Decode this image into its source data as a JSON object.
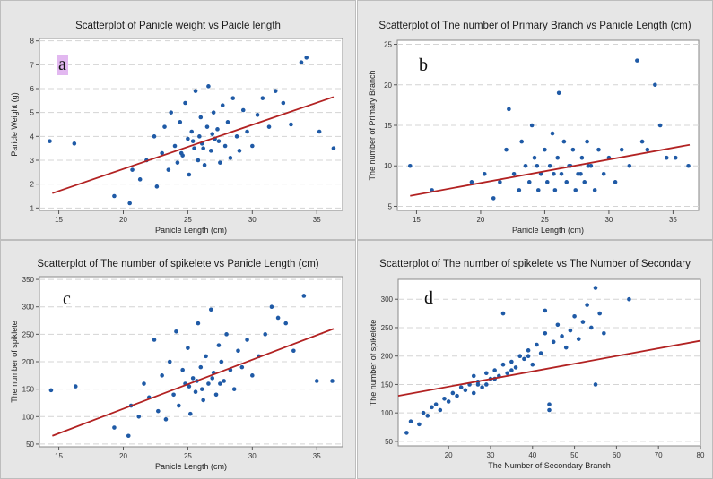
{
  "chart_data": [
    {
      "type": "scatter",
      "panel_label": "a",
      "title": "Scatterplot of Panicle weight vs Paicle length",
      "xlabel": "Panicle Length (cm)",
      "ylabel": "Paricle Weight (g)",
      "xlim": [
        13.5,
        37
      ],
      "ylim": [
        0.9,
        8.1
      ],
      "xticks": [
        15,
        20,
        25,
        30,
        35
      ],
      "yticks": [
        1,
        2,
        3,
        4,
        5,
        6,
        7,
        8
      ],
      "grid": "horizontal-dashed",
      "fit_line": {
        "x": [
          14.5,
          36.3
        ],
        "y": [
          1.62,
          5.65
        ]
      },
      "colors": {
        "points": "#1f5aa6",
        "fit": "#b22222"
      },
      "points": [
        [
          14.3,
          3.8
        ],
        [
          16.2,
          3.7
        ],
        [
          19.3,
          1.5
        ],
        [
          20.5,
          1.2
        ],
        [
          20.7,
          2.6
        ],
        [
          21.3,
          2.2
        ],
        [
          21.8,
          3.0
        ],
        [
          22.4,
          4.0
        ],
        [
          22.6,
          1.9
        ],
        [
          23.0,
          3.3
        ],
        [
          23.2,
          4.4
        ],
        [
          23.5,
          2.6
        ],
        [
          23.7,
          5.0
        ],
        [
          24.0,
          3.6
        ],
        [
          24.2,
          2.9
        ],
        [
          24.4,
          4.6
        ],
        [
          24.6,
          3.2
        ],
        [
          24.8,
          5.4
        ],
        [
          25.0,
          3.9
        ],
        [
          25.1,
          2.4
        ],
        [
          25.3,
          4.2
        ],
        [
          25.5,
          3.5
        ],
        [
          25.6,
          5.9
        ],
        [
          25.8,
          3.0
        ],
        [
          26.0,
          4.8
        ],
        [
          26.1,
          3.7
        ],
        [
          26.3,
          2.8
        ],
        [
          26.5,
          4.4
        ],
        [
          26.6,
          6.1
        ],
        [
          26.8,
          3.4
        ],
        [
          27.0,
          5.0
        ],
        [
          27.1,
          3.9
        ],
        [
          27.3,
          4.3
        ],
        [
          27.5,
          2.9
        ],
        [
          27.7,
          5.3
        ],
        [
          27.9,
          3.6
        ],
        [
          28.1,
          4.6
        ],
        [
          28.3,
          3.1
        ],
        [
          28.5,
          5.6
        ],
        [
          28.8,
          4.0
        ],
        [
          29.0,
          3.4
        ],
        [
          29.3,
          5.1
        ],
        [
          29.6,
          4.2
        ],
        [
          30.0,
          3.6
        ],
        [
          30.4,
          4.9
        ],
        [
          30.8,
          5.6
        ],
        [
          31.3,
          4.4
        ],
        [
          31.8,
          5.9
        ],
        [
          32.4,
          5.4
        ],
        [
          33.0,
          4.5
        ],
        [
          33.8,
          7.1
        ],
        [
          34.2,
          7.3
        ],
        [
          35.2,
          4.2
        ],
        [
          36.3,
          3.5
        ],
        [
          24.5,
          3.3
        ],
        [
          25.4,
          3.8
        ],
        [
          26.2,
          3.5
        ],
        [
          26.9,
          4.1
        ],
        [
          27.4,
          3.8
        ],
        [
          25.9,
          4.0
        ]
      ]
    },
    {
      "type": "scatter",
      "panel_label": "b",
      "title": "Scatterplot of Tne number of Primary Branch vs Panicle Length (cm)",
      "xlabel": "Panicle Length (cm)",
      "ylabel": "Tne number of Primary Branch",
      "xlim": [
        13.5,
        37
      ],
      "ylim": [
        4.5,
        25.5
      ],
      "xticks": [
        15,
        20,
        25,
        30,
        35
      ],
      "yticks": [
        5,
        10,
        15,
        20,
        25
      ],
      "grid": "horizontal-dashed",
      "fit_line": {
        "x": [
          14.5,
          36.3
        ],
        "y": [
          6.3,
          12.6
        ]
      },
      "colors": {
        "points": "#1f5aa6",
        "fit": "#b22222"
      },
      "points": [
        [
          14.5,
          10
        ],
        [
          16.2,
          7
        ],
        [
          19.3,
          8
        ],
        [
          20.3,
          9
        ],
        [
          21.0,
          6
        ],
        [
          21.5,
          8
        ],
        [
          22.0,
          12
        ],
        [
          22.2,
          17
        ],
        [
          22.6,
          9
        ],
        [
          23.0,
          7
        ],
        [
          23.2,
          13
        ],
        [
          23.5,
          10
        ],
        [
          23.8,
          8
        ],
        [
          24.0,
          15
        ],
        [
          24.2,
          11
        ],
        [
          24.5,
          7
        ],
        [
          24.7,
          9
        ],
        [
          25.0,
          12
        ],
        [
          25.2,
          8
        ],
        [
          25.4,
          10
        ],
        [
          25.6,
          14
        ],
        [
          25.8,
          7
        ],
        [
          26.0,
          11
        ],
        [
          26.1,
          19
        ],
        [
          26.3,
          9
        ],
        [
          26.5,
          13
        ],
        [
          26.7,
          8
        ],
        [
          27.0,
          10
        ],
        [
          27.2,
          12
        ],
        [
          27.4,
          7
        ],
        [
          27.6,
          9
        ],
        [
          27.9,
          11
        ],
        [
          28.1,
          8
        ],
        [
          28.3,
          13
        ],
        [
          28.6,
          10
        ],
        [
          28.9,
          7
        ],
        [
          29.2,
          12
        ],
        [
          29.6,
          9
        ],
        [
          30.0,
          11
        ],
        [
          30.5,
          8
        ],
        [
          31.0,
          12
        ],
        [
          31.6,
          10
        ],
        [
          32.2,
          23
        ],
        [
          32.6,
          13
        ],
        [
          33.0,
          12
        ],
        [
          33.6,
          20
        ],
        [
          34.0,
          15
        ],
        [
          34.5,
          11
        ],
        [
          35.2,
          11
        ],
        [
          36.2,
          10
        ],
        [
          24.4,
          10
        ],
        [
          25.7,
          9
        ],
        [
          26.9,
          10
        ],
        [
          27.8,
          9
        ],
        [
          28.4,
          10
        ]
      ]
    },
    {
      "type": "scatter",
      "panel_label": "c",
      "title": "Scatterplot of The number of spikelete vs Panicle Length (cm)",
      "xlabel": "Panicle Length (cm)",
      "ylabel": "The number of spiklete",
      "xlim": [
        13.5,
        37
      ],
      "ylim": [
        45,
        355
      ],
      "xticks": [
        15,
        20,
        25,
        30,
        35
      ],
      "yticks": [
        50,
        100,
        150,
        200,
        250,
        300,
        350
      ],
      "grid": "horizontal-dashed",
      "fit_line": {
        "x": [
          14.5,
          36.3
        ],
        "y": [
          65,
          260
        ]
      },
      "colors": {
        "points": "#1f5aa6",
        "fit": "#b22222"
      },
      "points": [
        [
          14.4,
          148
        ],
        [
          16.3,
          155
        ],
        [
          19.3,
          80
        ],
        [
          20.4,
          65
        ],
        [
          20.6,
          120
        ],
        [
          21.2,
          100
        ],
        [
          21.6,
          160
        ],
        [
          22.0,
          135
        ],
        [
          22.4,
          240
        ],
        [
          22.7,
          110
        ],
        [
          23.0,
          175
        ],
        [
          23.3,
          95
        ],
        [
          23.6,
          200
        ],
        [
          23.9,
          140
        ],
        [
          24.1,
          255
        ],
        [
          24.3,
          120
        ],
        [
          24.6,
          185
        ],
        [
          24.8,
          160
        ],
        [
          25.0,
          225
        ],
        [
          25.2,
          105
        ],
        [
          25.4,
          170
        ],
        [
          25.6,
          145
        ],
        [
          25.8,
          270
        ],
        [
          26.0,
          190
        ],
        [
          26.2,
          130
        ],
        [
          26.4,
          210
        ],
        [
          26.6,
          160
        ],
        [
          26.8,
          295
        ],
        [
          27.0,
          180
        ],
        [
          27.2,
          140
        ],
        [
          27.4,
          230
        ],
        [
          27.6,
          200
        ],
        [
          27.8,
          165
        ],
        [
          28.0,
          250
        ],
        [
          28.3,
          185
        ],
        [
          28.6,
          150
        ],
        [
          28.9,
          220
        ],
        [
          29.2,
          190
        ],
        [
          29.6,
          240
        ],
        [
          30.0,
          175
        ],
        [
          30.5,
          210
        ],
        [
          31.0,
          250
        ],
        [
          31.5,
          300
        ],
        [
          32.0,
          280
        ],
        [
          32.6,
          270
        ],
        [
          33.2,
          220
        ],
        [
          34.0,
          320
        ],
        [
          35.0,
          165
        ],
        [
          36.2,
          165
        ],
        [
          25.1,
          155
        ],
        [
          26.1,
          150
        ],
        [
          26.9,
          170
        ],
        [
          27.5,
          160
        ],
        [
          25.7,
          165
        ]
      ]
    },
    {
      "type": "scatter",
      "panel_label": "d",
      "title": "Scatterplot of The number of spikelete vs The Number of Secondary",
      "xlabel": "The Number of Secondary Branch",
      "ylabel": "The number of spikelete",
      "xlim": [
        8,
        80
      ],
      "ylim": [
        42,
        335
      ],
      "xticks": [
        20,
        30,
        40,
        50,
        60,
        70,
        80
      ],
      "yticks": [
        50,
        100,
        150,
        200,
        250,
        300
      ],
      "grid": "horizontal-dashed",
      "fit_line": {
        "x": [
          8,
          80
        ],
        "y": [
          130,
          227
        ]
      },
      "colors": {
        "points": "#1f5aa6",
        "fit": "#b22222"
      },
      "points": [
        [
          10,
          65
        ],
        [
          11,
          85
        ],
        [
          13,
          80
        ],
        [
          14,
          100
        ],
        [
          15,
          95
        ],
        [
          16,
          110
        ],
        [
          17,
          115
        ],
        [
          18,
          105
        ],
        [
          19,
          125
        ],
        [
          20,
          120
        ],
        [
          21,
          135
        ],
        [
          22,
          130
        ],
        [
          23,
          145
        ],
        [
          24,
          140
        ],
        [
          25,
          150
        ],
        [
          26,
          135
        ],
        [
          26,
          165
        ],
        [
          27,
          155
        ],
        [
          28,
          145
        ],
        [
          29,
          170
        ],
        [
          30,
          160
        ],
        [
          31,
          175
        ],
        [
          32,
          165
        ],
        [
          33,
          185
        ],
        [
          33,
          275
        ],
        [
          34,
          170
        ],
        [
          35,
          190
        ],
        [
          36,
          180
        ],
        [
          37,
          200
        ],
        [
          38,
          195
        ],
        [
          39,
          210
        ],
        [
          40,
          185
        ],
        [
          41,
          220
        ],
        [
          42,
          205
        ],
        [
          43,
          240
        ],
        [
          43,
          280
        ],
        [
          44,
          105
        ],
        [
          44,
          115
        ],
        [
          45,
          225
        ],
        [
          46,
          255
        ],
        [
          47,
          235
        ],
        [
          48,
          215
        ],
        [
          49,
          245
        ],
        [
          50,
          270
        ],
        [
          51,
          230
        ],
        [
          52,
          260
        ],
        [
          53,
          290
        ],
        [
          54,
          250
        ],
        [
          55,
          320
        ],
        [
          55,
          150
        ],
        [
          56,
          275
        ],
        [
          57,
          240
        ],
        [
          63,
          300
        ],
        [
          27,
          150
        ],
        [
          31,
          160
        ],
        [
          35,
          175
        ],
        [
          39,
          200
        ],
        [
          29,
          150
        ]
      ]
    }
  ]
}
